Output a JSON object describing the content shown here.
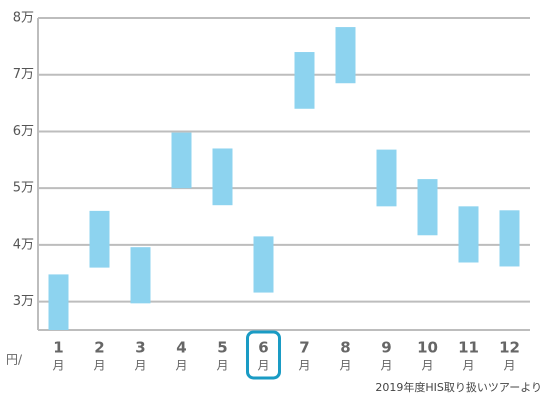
{
  "chart_data": {
    "type": "floating_bar",
    "categories": [
      "1",
      "2",
      "3",
      "4",
      "5",
      "6",
      "7",
      "8",
      "9",
      "10",
      "11",
      "12"
    ],
    "x_unit": "月",
    "y_unit_label": "円/",
    "low": [
      25000,
      36000,
      29700,
      50000,
      47000,
      31600,
      64000,
      68500,
      46800,
      41700,
      36900,
      36200
    ],
    "high": [
      34800,
      46000,
      39600,
      59800,
      57000,
      41500,
      74000,
      78400,
      56800,
      51600,
      46800,
      46100
    ],
    "color": "#8dd3ef",
    "ylim": [
      25000,
      80000
    ],
    "yticks": [
      {
        "value": 30000,
        "label": "3万"
      },
      {
        "value": 40000,
        "label": "4万"
      },
      {
        "value": 50000,
        "label": "5万"
      },
      {
        "value": 60000,
        "label": "6万"
      },
      {
        "value": 70000,
        "label": "7万"
      },
      {
        "value": 80000,
        "label": "8万"
      }
    ],
    "grid": true,
    "highlight": "6",
    "highlight_color": "#1a9bc4",
    "source": "2019年度HIS取り扱いツアーより"
  }
}
